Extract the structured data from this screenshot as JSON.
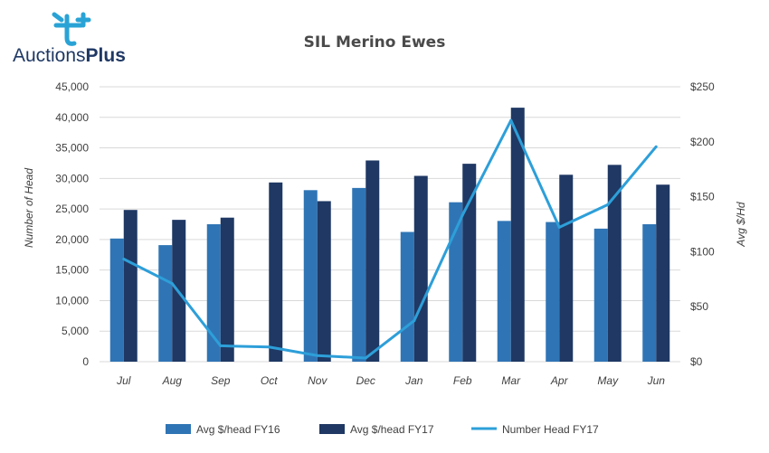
{
  "logo": {
    "text_a": "Auctions",
    "text_b": "Plus"
  },
  "colors": {
    "fy16": "#2f75b5",
    "fy17": "#1f3864",
    "line": "#2d9fd9",
    "logo_mark": "#29a3d6",
    "grid": "#d9d9d9"
  },
  "chart_data": {
    "type": "bar",
    "title": "SIL Merino Ewes",
    "ylabel": "Number of Head",
    "y2label": "Avg $/Hd",
    "ylim": [
      0,
      45000
    ],
    "y2lim": [
      0,
      250
    ],
    "yticks": [
      "0",
      "5,000",
      "10,000",
      "15,000",
      "20,000",
      "25,000",
      "30,000",
      "35,000",
      "40,000",
      "45,000"
    ],
    "y2ticks": [
      "$0",
      "$50",
      "$100",
      "$150",
      "$200",
      "$250"
    ],
    "grid": true,
    "legend_position": "bottom",
    "categories": [
      "Jul",
      "Aug",
      "Sep",
      "Oct",
      "Nov",
      "Dec",
      "Jan",
      "Feb",
      "Mar",
      "Apr",
      "May",
      "Jun"
    ],
    "series": [
      {
        "name": "Avg $/head FY16",
        "kind": "bar",
        "axis": "y2",
        "values": [
          112,
          106,
          125,
          null,
          156,
          158,
          118,
          145,
          128,
          127,
          121,
          125
        ]
      },
      {
        "name": "Avg $/head FY17",
        "kind": "bar",
        "axis": "y2",
        "values": [
          138,
          129,
          131,
          163,
          146,
          183,
          169,
          180,
          231,
          170,
          179,
          161
        ]
      },
      {
        "name": "Number Head FY17",
        "kind": "line",
        "axis": "y",
        "values": [
          16800,
          12800,
          2600,
          2400,
          1000,
          600,
          6700,
          24000,
          39500,
          22000,
          25700,
          35200
        ]
      }
    ]
  }
}
